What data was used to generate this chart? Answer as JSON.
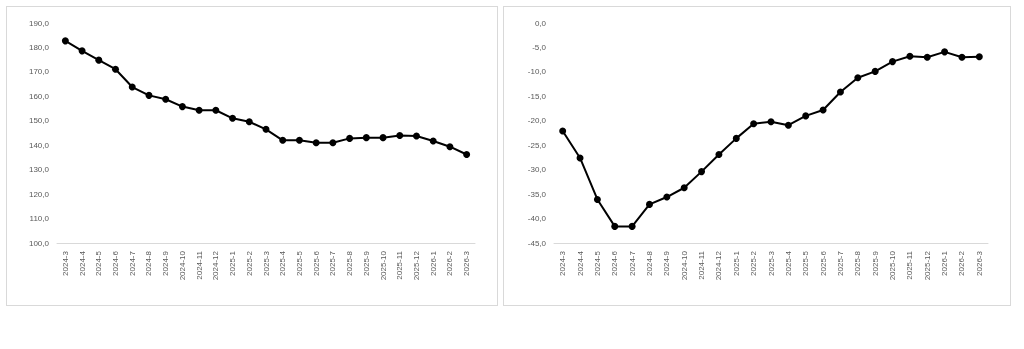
{
  "chart_data": [
    {
      "type": "line",
      "categories": [
        "2024-3",
        "2024-4",
        "2024-5",
        "2024-6",
        "2024-7",
        "2024-8",
        "2024-9",
        "2024-10",
        "2024-11",
        "2024-12",
        "2025-1",
        "2025-2",
        "2025-3",
        "2025-4",
        "2025-5",
        "2025-6",
        "2025-7",
        "2025-8",
        "2025-9",
        "2025-10",
        "2025-11",
        "2025-12",
        "2026-1",
        "2026-2",
        "2026-3"
      ],
      "series": [
        {
          "color": "#000000",
          "values": [
            182.7,
            178.6,
            174.8,
            171.1,
            163.8,
            160.4,
            158.8,
            155.8,
            154.3,
            154.3,
            151.0,
            149.6,
            146.5,
            142.0,
            142.0,
            141.0,
            141.0,
            142.8,
            143.1,
            143.1,
            144.0,
            143.8,
            141.7,
            139.4,
            136.2
          ]
        }
      ],
      "ylim": [
        100,
        190
      ],
      "yticks": [
        {
          "value": 100,
          "label": "100,0"
        },
        {
          "value": 110,
          "label": "110,0"
        },
        {
          "value": 120,
          "label": "120,0"
        },
        {
          "value": 130,
          "label": "130,0"
        },
        {
          "value": 140,
          "label": "140,0"
        },
        {
          "value": 150,
          "label": "150,0"
        },
        {
          "value": 160,
          "label": "160,0"
        },
        {
          "value": 170,
          "label": "170,0"
        },
        {
          "value": 180,
          "label": "180,0"
        },
        {
          "value": 190,
          "label": "190,0"
        }
      ],
      "marker": "circle",
      "line_style": "solid"
    },
    {
      "type": "line",
      "categories": [
        "2024-3",
        "2024-4",
        "2024-5",
        "2024-6",
        "2024-7",
        "2024-8",
        "2024-9",
        "2024-10",
        "2024-11",
        "2024-12",
        "2025-1",
        "2025-2",
        "2025-3",
        "2025-4",
        "2025-5",
        "2025-6",
        "2025-7",
        "2025-8",
        "2025-9",
        "2025-10",
        "2025-11",
        "2025-12",
        "2026-1",
        "2026-2",
        "2026-3"
      ],
      "series": [
        {
          "color": "#000000",
          "values": [
            -22.1,
            -27.6,
            -36.1,
            -41.6,
            -41.6,
            -37.1,
            -35.6,
            -33.7,
            -30.4,
            -26.9,
            -23.6,
            -20.6,
            -20.2,
            -20.9,
            -19.0,
            -17.8,
            -14.1,
            -11.2,
            -9.9,
            -7.9,
            -6.8,
            -7.0,
            -5.9,
            -7.0,
            -6.9
          ]
        }
      ],
      "ylim": [
        -45,
        0
      ],
      "yticks": [
        {
          "value": -45,
          "label": "-45,0"
        },
        {
          "value": -40,
          "label": "-40,0"
        },
        {
          "value": -35,
          "label": "-35,0"
        },
        {
          "value": -30,
          "label": "-30,0"
        },
        {
          "value": -25,
          "label": "-25,0"
        },
        {
          "value": -20,
          "label": "-20,0"
        },
        {
          "value": -15,
          "label": "-15,0"
        },
        {
          "value": -10,
          "label": "-10,0"
        },
        {
          "value": -5,
          "label": "-5,0"
        },
        {
          "value": 0,
          "label": "0,0"
        }
      ],
      "marker": "circle",
      "line_style": "solid"
    }
  ]
}
